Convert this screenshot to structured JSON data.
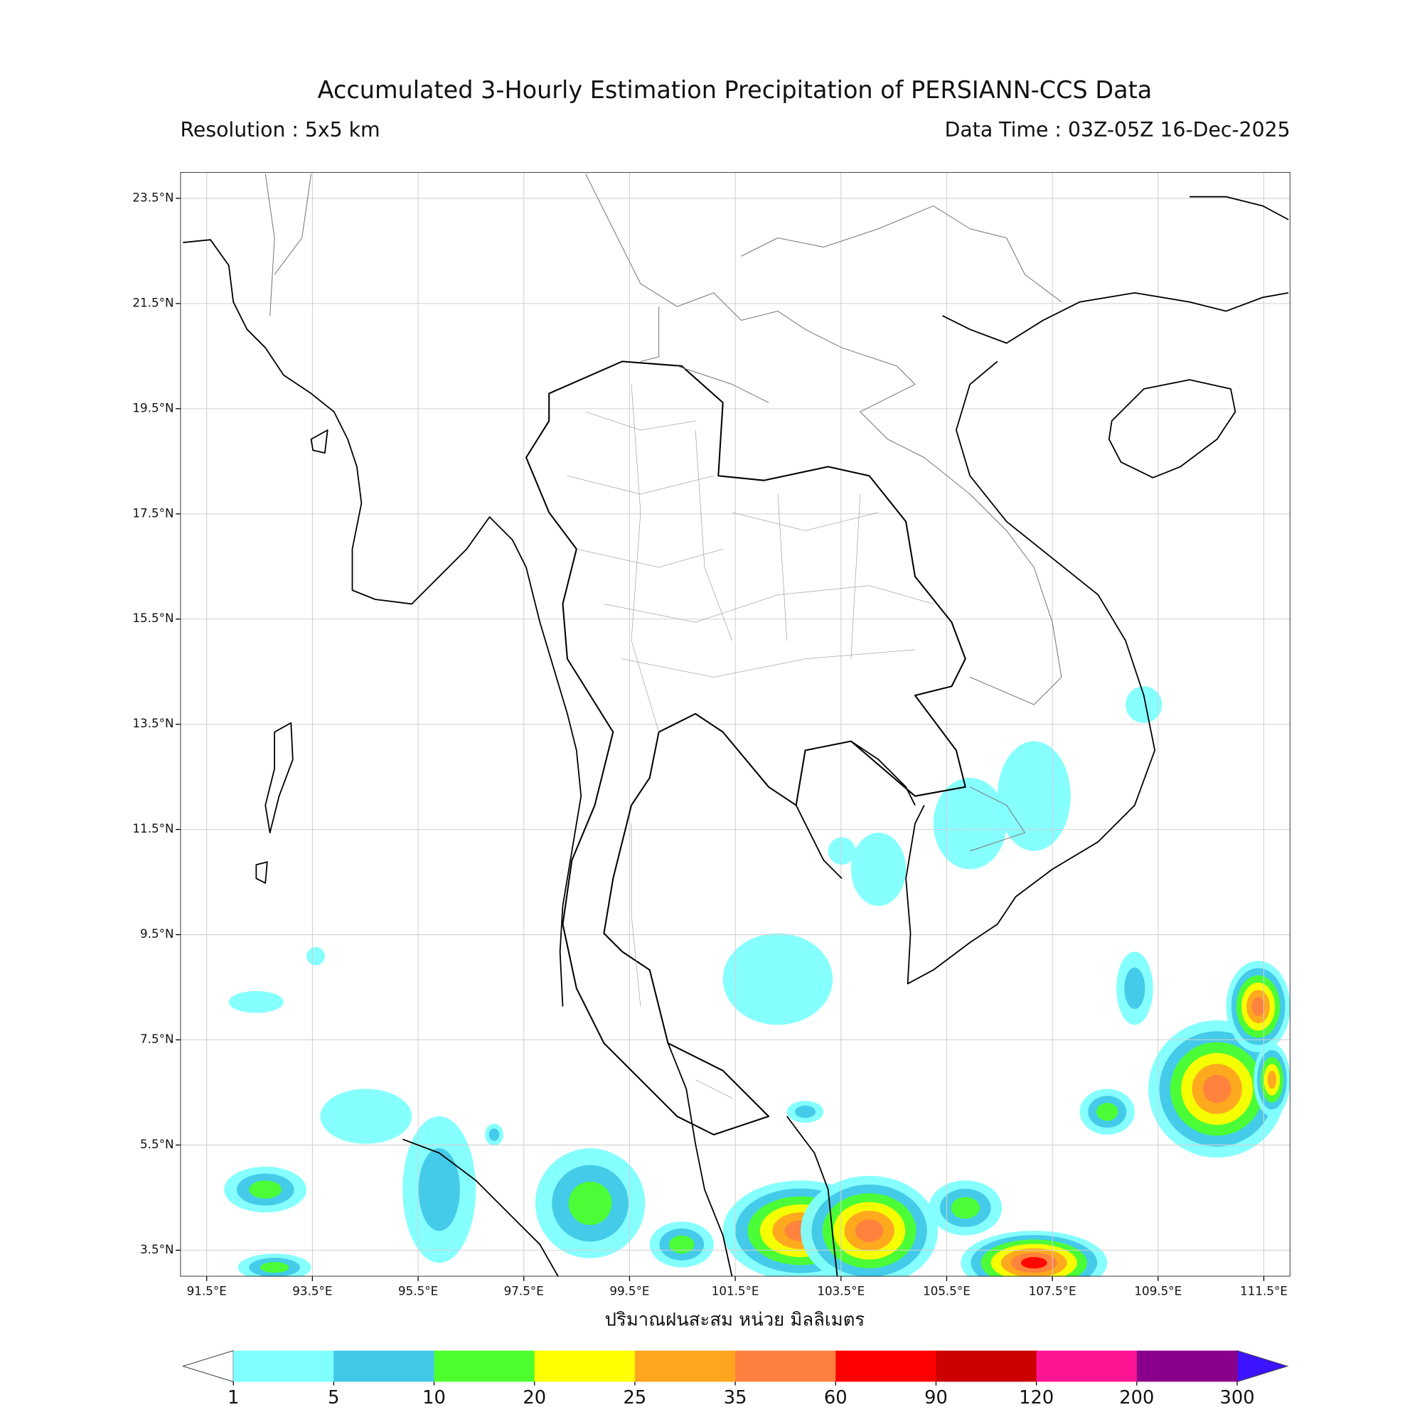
{
  "title": "Accumulated 3-Hourly Estimation Precipitation of PERSIANN-CCS Data",
  "subtitle_left": "Resolution : 5x5 km",
  "subtitle_right": "Data Time : 03Z-05Z 16-Dec-2025",
  "map": {
    "xlim": [
      91,
      112
    ],
    "ylim": [
      3,
      24
    ],
    "xticks": [
      {
        "value": 91.5,
        "label": "91.5°E"
      },
      {
        "value": 93.5,
        "label": "93.5°E"
      },
      {
        "value": 95.5,
        "label": "95.5°E"
      },
      {
        "value": 97.5,
        "label": "97.5°E"
      },
      {
        "value": 99.5,
        "label": "99.5°E"
      },
      {
        "value": 101.5,
        "label": "101.5°E"
      },
      {
        "value": 103.5,
        "label": "103.5°E"
      },
      {
        "value": 105.5,
        "label": "105.5°E"
      },
      {
        "value": 107.5,
        "label": "107.5°E"
      },
      {
        "value": 109.5,
        "label": "109.5°E"
      },
      {
        "value": 111.5,
        "label": "111.5°E"
      }
    ],
    "yticks": [
      {
        "value": 3.5,
        "label": "3.5°N"
      },
      {
        "value": 5.5,
        "label": "5.5°N"
      },
      {
        "value": 7.5,
        "label": "7.5°N"
      },
      {
        "value": 9.5,
        "label": "9.5°N"
      },
      {
        "value": 11.5,
        "label": "11.5°N"
      },
      {
        "value": 13.5,
        "label": "13.5°N"
      },
      {
        "value": 15.5,
        "label": "15.5°N"
      },
      {
        "value": 17.5,
        "label": "17.5°N"
      },
      {
        "value": 19.5,
        "label": "19.5°N"
      },
      {
        "value": 21.5,
        "label": "21.5°N"
      },
      {
        "value": 23.5,
        "label": "23.5°N"
      }
    ],
    "grid": true,
    "xlabel": "ปริมาณฝนสะสม หน่วย มิลลิเมตร"
  },
  "colorbar": {
    "levels": [
      1,
      5,
      10,
      20,
      25,
      35,
      60,
      90,
      120,
      200,
      300
    ],
    "colors": [
      "#7fffff",
      "#40c8e8",
      "#4cff2c",
      "#ffff00",
      "#ffa520",
      "#ff7f3f",
      "#ff0000",
      "#cc0000",
      "#ff1493",
      "#8b008b"
    ],
    "under_color": "#ffffff",
    "over_color": "#3c14ff"
  }
}
